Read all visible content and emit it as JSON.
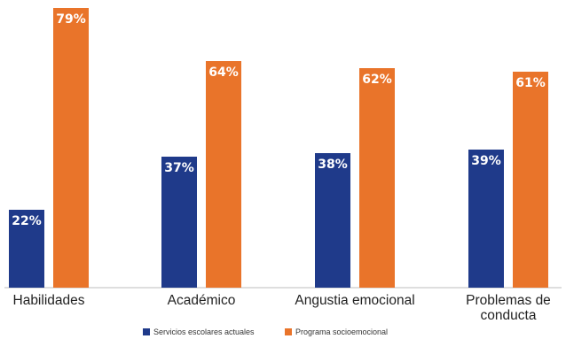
{
  "chart_data": {
    "type": "bar",
    "title": "",
    "xlabel": "",
    "ylabel": "",
    "ylim": [
      0,
      80
    ],
    "grid": false,
    "legend_position": "bottom",
    "categories": [
      [
        "Habilidades"
      ],
      [
        "Académico"
      ],
      [
        "Angustia emocional"
      ],
      [
        "Problemas de",
        "conducta"
      ]
    ],
    "series": [
      {
        "name": "Servicios escolares actuales",
        "color": "#1f3a8a",
        "values": [
          22,
          37,
          38,
          39
        ],
        "labels": [
          "22%",
          "37%",
          "38%",
          "39%"
        ]
      },
      {
        "name": "Programa socioemocional",
        "color": "#e9742a",
        "values": [
          79,
          64,
          62,
          61
        ],
        "labels": [
          "79%",
          "64%",
          "62%",
          "61%"
        ]
      }
    ]
  },
  "colors": {
    "axis": "#bdbdbd",
    "background": "#ffffff"
  }
}
